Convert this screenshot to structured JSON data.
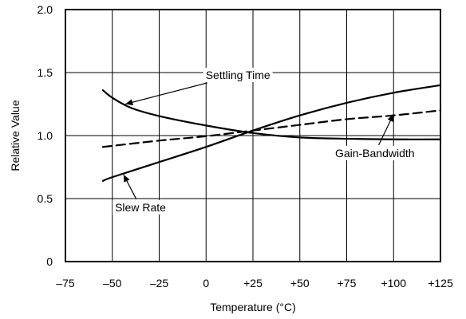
{
  "chart_data": {
    "type": "line",
    "xlabel": "Temperature (°C)",
    "ylabel": "Relative Value",
    "xlim": [
      -75,
      125
    ],
    "ylim": [
      0,
      2.0
    ],
    "x_ticks": [
      -75,
      -50,
      -25,
      0,
      25,
      50,
      75,
      100,
      125
    ],
    "x_tick_labels": [
      "–75",
      "–50",
      "–25",
      "0",
      "+25",
      "+50",
      "+75",
      "+100",
      "+125"
    ],
    "y_ticks": [
      0,
      0.5,
      1.0,
      1.5,
      2.0
    ],
    "y_tick_labels": [
      "0",
      "0.5",
      "1.0",
      "1.5",
      "2.0"
    ],
    "grid": true,
    "series": [
      {
        "name": "Settling Time",
        "style": "solid",
        "points": [
          [
            -55,
            1.36
          ],
          [
            -50,
            1.3
          ],
          [
            -40,
            1.22
          ],
          [
            -25,
            1.155
          ],
          [
            0,
            1.08
          ],
          [
            25,
            1.02
          ],
          [
            50,
            0.985
          ],
          [
            75,
            0.975
          ],
          [
            100,
            0.97
          ],
          [
            125,
            0.97
          ]
        ]
      },
      {
        "name": "Gain-Bandwidth",
        "style": "dashed",
        "points": [
          [
            -55,
            0.91
          ],
          [
            -25,
            0.96
          ],
          [
            0,
            0.995
          ],
          [
            25,
            1.04
          ],
          [
            50,
            1.085
          ],
          [
            75,
            1.13
          ],
          [
            100,
            1.16
          ],
          [
            125,
            1.2
          ]
        ]
      },
      {
        "name": "Slew Rate",
        "style": "solid",
        "points": [
          [
            -55,
            0.64
          ],
          [
            -50,
            0.67
          ],
          [
            -25,
            0.79
          ],
          [
            0,
            0.91
          ],
          [
            25,
            1.04
          ],
          [
            50,
            1.16
          ],
          [
            75,
            1.26
          ],
          [
            100,
            1.34
          ],
          [
            125,
            1.4
          ]
        ]
      }
    ],
    "annotations": [
      {
        "text": "Settling Time",
        "at": [
          17,
          1.45
        ],
        "anchor": "middle",
        "points_to": [
          -43,
          1.25
        ]
      },
      {
        "text": "Gain-Bandwidth",
        "at": [
          90,
          0.83
        ],
        "anchor": "middle",
        "points_to": [
          100,
          1.17
        ]
      },
      {
        "text": "Slew Rate",
        "at": [
          -35,
          0.4
        ],
        "anchor": "middle",
        "points_to": [
          -44,
          0.69
        ]
      }
    ]
  }
}
